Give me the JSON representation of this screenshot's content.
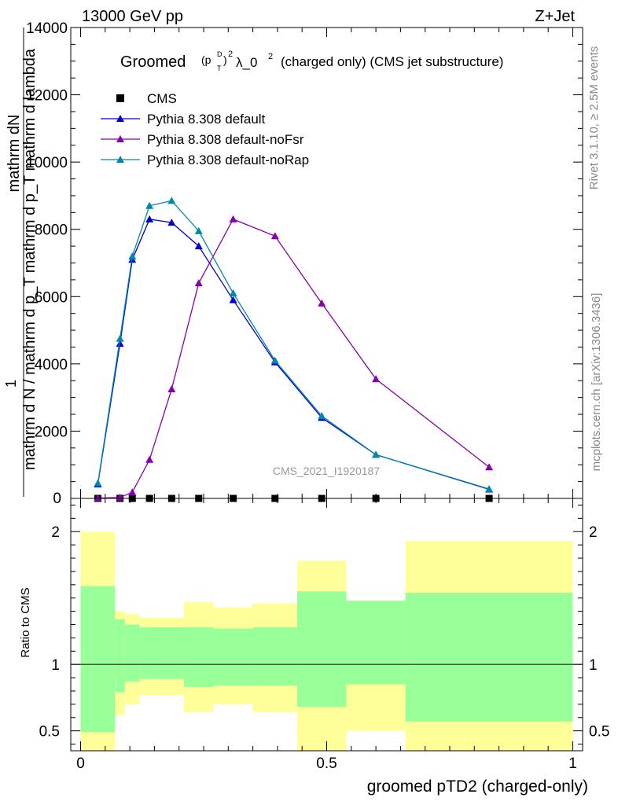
{
  "header": {
    "left": "13000 GeV pp",
    "right": "Z+Jet"
  },
  "side_labels": {
    "rivet": "Rivet 3.1.10, ≥ 2.5M events",
    "mcplots": "mcplots.cern.ch [arXiv:1306.3436]"
  },
  "watermark": "CMS_2021_I1920187",
  "colors": {
    "cms": "#000000",
    "default": "#0000cc",
    "noFsr": "#8800aa",
    "noRap": "#0088aa",
    "band_outer": "#ffff99",
    "band_inner": "#99ff99"
  },
  "chart_data": [
    {
      "type": "line",
      "title_prefix": "Groomed",
      "title_suffix": "λ_0",
      "title_rest": "(charged only) (CMS jet substructure)",
      "ylabel_top": "1",
      "ylabel_num": "mathrm dN",
      "ylabel_den": "mathrm d N / mathrm d p_T mathrm d p_T mathrm d lambda",
      "xlim": [
        -0.02,
        1.02
      ],
      "ylim": [
        0,
        14000
      ],
      "yticks": [
        2000,
        4000,
        6000,
        8000,
        10000,
        12000,
        14000
      ],
      "ytick_labels": [
        "2000",
        "4000",
        "6000",
        "8000",
        "10000",
        "12000",
        "14000"
      ],
      "series": [
        {
          "name": "CMS",
          "key": "cms",
          "marker": "square",
          "x": [
            0.035,
            0.08,
            0.105,
            0.14,
            0.185,
            0.24,
            0.31,
            0.395,
            0.49,
            0.6,
            0.83
          ],
          "y": [
            0,
            0,
            0,
            0,
            0,
            0,
            0,
            0,
            0,
            0,
            0
          ]
        },
        {
          "name": "Pythia 8.308 default",
          "key": "default",
          "marker": "triangle",
          "x": [
            0.035,
            0.08,
            0.105,
            0.14,
            0.185,
            0.24,
            0.31,
            0.395,
            0.49,
            0.6,
            0.83
          ],
          "y": [
            420,
            4600,
            7100,
            8300,
            8200,
            7500,
            5900,
            4050,
            2400,
            1300,
            270
          ]
        },
        {
          "name": "Pythia 8.308 default-noFsr",
          "key": "noFsr",
          "marker": "triangle",
          "x": [
            0.035,
            0.08,
            0.105,
            0.14,
            0.185,
            0.24,
            0.31,
            0.395,
            0.49,
            0.6,
            0.83
          ],
          "y": [
            10,
            30,
            180,
            1150,
            3250,
            6400,
            8300,
            7800,
            5800,
            3550,
            930
          ]
        },
        {
          "name": "Pythia 8.308 default-noRap",
          "key": "noRap",
          "marker": "triangle",
          "x": [
            0.035,
            0.08,
            0.105,
            0.14,
            0.185,
            0.24,
            0.31,
            0.395,
            0.49,
            0.6,
            0.83
          ],
          "y": [
            450,
            4750,
            7200,
            8700,
            8850,
            7950,
            6100,
            4100,
            2450,
            1300,
            280
          ]
        }
      ]
    },
    {
      "type": "area",
      "ylabel": "Ratio to CMS",
      "xlabel": "groomed pTD2 (charged-only)",
      "xlim": [
        -0.02,
        1.02
      ],
      "ylim": [
        0.35,
        2.25
      ],
      "yticks": [
        0.5,
        1,
        2
      ],
      "ytick_labels": [
        "0.5",
        "1",
        "2"
      ],
      "xticks": [
        0,
        0.5,
        1
      ],
      "xtick_labels": [
        "0",
        "0.5",
        "1"
      ],
      "bins": [
        {
          "lo": 0.0,
          "hi": 0.07,
          "outer": [
            0.35,
            2.0
          ],
          "inner": [
            0.49,
            1.59
          ]
        },
        {
          "lo": 0.07,
          "hi": 0.09,
          "outer": [
            0.62,
            1.4
          ],
          "inner": [
            0.79,
            1.34
          ]
        },
        {
          "lo": 0.09,
          "hi": 0.12,
          "outer": [
            0.7,
            1.38
          ],
          "inner": [
            0.87,
            1.3
          ]
        },
        {
          "lo": 0.12,
          "hi": 0.21,
          "outer": [
            0.77,
            1.35
          ],
          "inner": [
            0.89,
            1.28
          ]
        },
        {
          "lo": 0.21,
          "hi": 0.27,
          "outer": [
            0.64,
            1.47
          ],
          "inner": [
            0.83,
            1.28
          ]
        },
        {
          "lo": 0.27,
          "hi": 0.35,
          "outer": [
            0.7,
            1.43
          ],
          "inner": [
            0.84,
            1.27
          ]
        },
        {
          "lo": 0.35,
          "hi": 0.44,
          "outer": [
            0.64,
            1.46
          ],
          "inner": [
            0.84,
            1.28
          ]
        },
        {
          "lo": 0.44,
          "hi": 0.54,
          "outer": [
            0.35,
            1.78
          ],
          "inner": [
            0.68,
            1.55
          ]
        },
        {
          "lo": 0.54,
          "hi": 0.66,
          "outer": [
            0.5,
            1.48
          ],
          "inner": [
            0.85,
            1.48
          ]
        },
        {
          "lo": 0.66,
          "hi": 1.0,
          "outer": [
            0.35,
            1.93
          ],
          "inner": [
            0.57,
            1.54
          ]
        }
      ]
    }
  ]
}
